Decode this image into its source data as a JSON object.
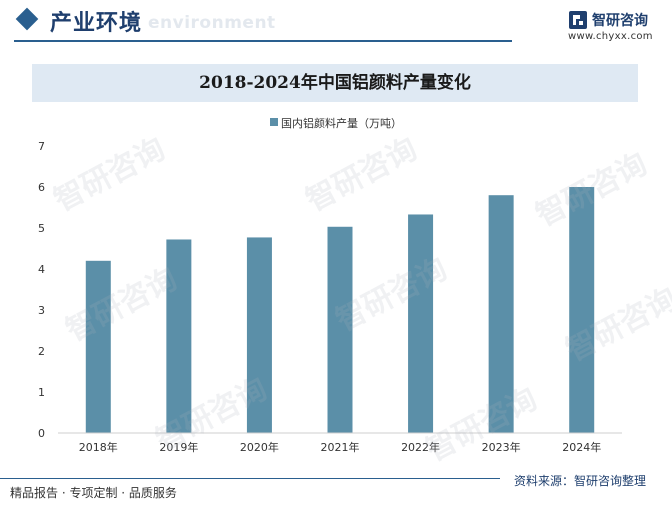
{
  "header": {
    "section_title": "产业环境",
    "section_subtitle": "environment",
    "brand_name": "智研咨询",
    "brand_url": "www.chyxx.com"
  },
  "watermark_text": "智研咨询",
  "chart_data": {
    "type": "bar",
    "title": "2018-2024年中国铝颜料产量变化",
    "categories": [
      "2018年",
      "2019年",
      "2020年",
      "2021年",
      "2022年",
      "2023年",
      "2024年"
    ],
    "series": [
      {
        "name": "国内铝颜料产量（万吨）",
        "values": [
          4.2,
          4.72,
          4.77,
          5.03,
          5.33,
          5.8,
          6.0
        ]
      }
    ],
    "y_ticks": [
      "0",
      "1",
      "2",
      "3",
      "4",
      "5",
      "6",
      "7"
    ],
    "ylim": [
      0,
      7
    ],
    "bar_color": "#5b8fa8",
    "grid": false,
    "legend_position": "top-center"
  },
  "footer": {
    "source": "资料来源：智研咨询整理",
    "slogan": "精品报告 · 专项定制 · 品质服务"
  }
}
